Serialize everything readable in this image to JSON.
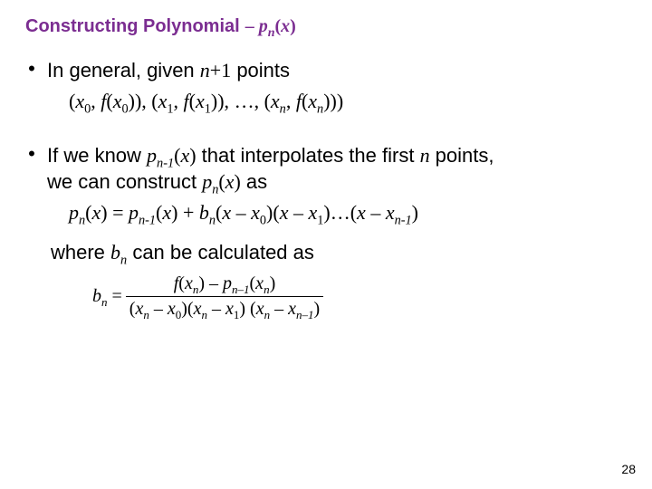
{
  "colors": {
    "title": "#7b2d91",
    "text": "#000000",
    "bg": "#ffffff"
  },
  "title": {
    "plain": "Constructing Polynomial",
    "dash": "–",
    "poly_p": "p",
    "poly_sub": "n",
    "poly_arg_open": "(",
    "poly_arg_x": "x",
    "poly_arg_close": ")"
  },
  "b1": {
    "lead": "In general, given ",
    "n": "n",
    "plus1": "+1",
    "tail": " points"
  },
  "points_line": {
    "open0": "(",
    "x0": "x",
    "sub0": "0",
    "c0": ", ",
    "f0": "f",
    "fo0": "(",
    "fx0": "x",
    "fsub0": "0",
    "fc0": ")",
    "close0": "), ",
    "open1": "(",
    "x1": "x",
    "sub1": "1",
    "c1": ", ",
    "f1": "f",
    "fo1": "(",
    "fx1": "x",
    "fsub1": "1",
    "fc1": ")",
    "close1": "), ",
    "dots": "…, ",
    "openn": "(",
    "xn": "x",
    "subn": "n",
    "cn": ", ",
    "fn": "f",
    "fon": "(",
    "fxn": "x",
    "fsubn": "n",
    "fcn": ")",
    "closen": "))"
  },
  "b2": {
    "l1a": "If we know ",
    "p": "p",
    "psub": "n-1",
    "parg": "(",
    "px": "x",
    "pclose": ")",
    "l1b": " that interpolates the first ",
    "n": "n",
    "l1c": " points,",
    "l2a": "we can construct ",
    "p2": "p",
    "psub2": "n",
    "parg2": "(",
    "px2": "x",
    "pclose2": ")",
    "l2b": " as"
  },
  "construct_line": {
    "p": "p",
    "psub": "n",
    "po": "(",
    "px": "x",
    "pc": ") = ",
    "p1": "p",
    "p1sub": "n-1",
    "p1o": "(",
    "p1x": "x",
    "p1c": ") + ",
    "b": "b",
    "bsub": "n",
    "f0o": "(",
    "f0x1": "x",
    "f0m": " – ",
    "f0x2": "x",
    "f0sub": "0",
    "f0c": ")",
    "f1o": "(",
    "f1x1": "x",
    "f1m": " – ",
    "f1x2": "x",
    "f1sub": "1",
    "f1c": ")",
    "dots": "…",
    "fno": "(",
    "fnx1": "x",
    "fnm": " – ",
    "fnx2": "x",
    "fnsub": "n-1",
    "fnc": ")"
  },
  "where": {
    "lead": "where ",
    "b": "b",
    "bsub": "n",
    "tail": " can be calculated as"
  },
  "formula": {
    "b": "b",
    "bsub": "n",
    "eq": " = ",
    "num": {
      "f": "f",
      "fo": "(",
      "fx": "x",
      "fsub": "n",
      "fc": ") – ",
      "p": "p",
      "psub": "n–1",
      "po": "(",
      "px": "x",
      "pxsub": "n",
      "pc": ")"
    },
    "den": {
      "d0o": "(",
      "d0x1": "x",
      "d0s1": "n",
      "d0m": " – ",
      "d0x2": "x",
      "d0s2": "0",
      "d0c": ")",
      "d1o": "(",
      "d1x1": "x",
      "d1s1": "n",
      "d1m": " – ",
      "d1x2": "x",
      "d1s2": "1",
      "d1c": ")",
      "gap": " ",
      "dno": "(",
      "dnx1": "x",
      "dns1": "n",
      "dnm": " – ",
      "dnx2": "x",
      "dns2": "n–1",
      "dnc": ")"
    }
  },
  "page": "28"
}
